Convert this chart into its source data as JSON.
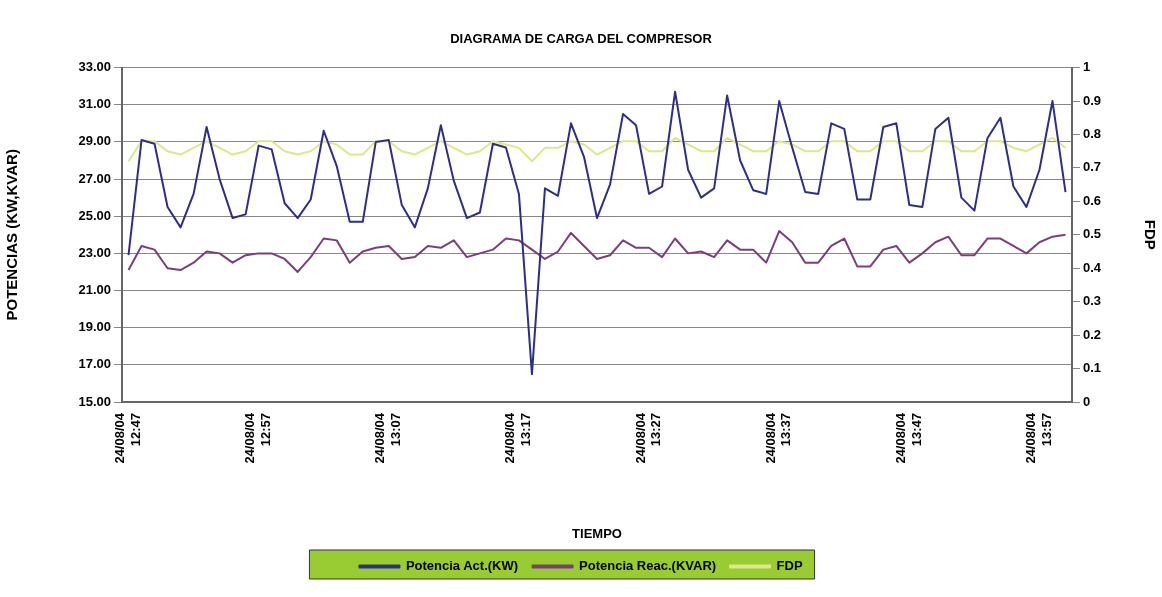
{
  "chart_data": {
    "type": "line",
    "title": "DIAGRAMA DE CARGA DEL COMPRESOR",
    "xlabel": "TIEMPO",
    "ylabel": "POTENCIAS (KW,KVAR)",
    "y2label": "FDP",
    "categories": [
      "24/08/04 12:47",
      null,
      null,
      null,
      null,
      null,
      null,
      null,
      null,
      null,
      "24/08/04 12:57",
      null,
      null,
      null,
      null,
      null,
      null,
      null,
      null,
      null,
      "24/08/04 13:07",
      null,
      null,
      null,
      null,
      null,
      null,
      null,
      null,
      null,
      "24/08/04 13:17",
      null,
      null,
      null,
      null,
      null,
      null,
      null,
      null,
      null,
      "24/08/04 13:27",
      null,
      null,
      null,
      null,
      null,
      null,
      null,
      null,
      null,
      "24/08/04 13:37",
      null,
      null,
      null,
      null,
      null,
      null,
      null,
      null,
      null,
      "24/08/04 13:47",
      null,
      null,
      null,
      null,
      null,
      null,
      null,
      null,
      null,
      "24/08/04 13:57",
      null,
      null
    ],
    "series": [
      {
        "name": "Potencia Act.(KW)",
        "color": "#2e2e8a",
        "values": [
          22.9,
          29.1,
          28.9,
          25.5,
          24.4,
          26.2,
          29.8,
          27.0,
          24.9,
          25.1,
          28.8,
          28.6,
          25.7,
          24.9,
          25.9,
          29.6,
          27.7,
          24.7,
          24.7,
          29.0,
          29.1,
          25.6,
          24.4,
          26.5,
          29.9,
          26.9,
          24.9,
          25.2,
          28.9,
          28.7,
          26.2,
          16.5,
          26.5,
          26.1,
          30.0,
          28.2,
          24.9,
          26.7,
          30.5,
          29.9,
          26.2,
          26.6,
          31.7,
          27.5,
          26.0,
          26.5,
          31.5,
          28.0,
          26.4,
          26.2,
          31.2,
          28.7,
          26.3,
          26.2,
          30.0,
          29.7,
          25.9,
          25.9,
          29.8,
          30.0,
          25.6,
          25.5,
          29.7,
          30.3,
          26.0,
          25.3,
          29.2,
          30.3,
          26.6,
          25.5,
          27.5,
          31.2,
          26.3
        ]
      },
      {
        "name": "Potencia Reac.(KVAR)",
        "color": "#7a3f7a",
        "values": [
          22.1,
          23.4,
          23.2,
          22.2,
          22.1,
          22.5,
          23.1,
          23.0,
          22.5,
          22.9,
          23.0,
          23.0,
          22.7,
          22.0,
          22.8,
          23.8,
          23.7,
          22.5,
          23.1,
          23.3,
          23.4,
          22.7,
          22.8,
          23.4,
          23.3,
          23.7,
          22.8,
          23.0,
          23.2,
          23.8,
          23.7,
          23.2,
          22.7,
          23.1,
          24.1,
          23.4,
          22.7,
          22.9,
          23.7,
          23.3,
          23.3,
          22.8,
          23.8,
          23.0,
          23.1,
          22.8,
          23.7,
          23.2,
          23.2,
          22.5,
          24.2,
          23.6,
          22.5,
          22.5,
          23.4,
          23.8,
          22.3,
          22.3,
          23.2,
          23.4,
          22.5,
          23.0,
          23.6,
          23.9,
          22.9,
          22.9,
          23.8,
          23.8,
          23.4,
          23.0,
          23.6,
          23.9,
          24.0
        ]
      },
      {
        "name": "FDP",
        "color": "#dde88a",
        "axis": "y2",
        "values": [
          0.72,
          0.78,
          0.78,
          0.75,
          0.74,
          0.76,
          0.78,
          0.76,
          0.74,
          0.75,
          0.78,
          0.78,
          0.75,
          0.74,
          0.75,
          0.78,
          0.77,
          0.74,
          0.74,
          0.78,
          0.78,
          0.75,
          0.74,
          0.76,
          0.78,
          0.76,
          0.74,
          0.75,
          0.78,
          0.77,
          0.76,
          0.72,
          0.76,
          0.76,
          0.78,
          0.77,
          0.74,
          0.76,
          0.78,
          0.78,
          0.75,
          0.75,
          0.79,
          0.77,
          0.75,
          0.75,
          0.79,
          0.77,
          0.75,
          0.75,
          0.78,
          0.77,
          0.75,
          0.75,
          0.78,
          0.78,
          0.75,
          0.75,
          0.78,
          0.78,
          0.75,
          0.75,
          0.78,
          0.78,
          0.75,
          0.75,
          0.78,
          0.78,
          0.76,
          0.75,
          0.77,
          0.79,
          0.76
        ]
      }
    ],
    "ylim": [
      15,
      33
    ],
    "yticks": [
      {
        "value": 15,
        "label": "15.00"
      },
      {
        "value": 17,
        "label": "17.00"
      },
      {
        "value": 19,
        "label": "19.00"
      },
      {
        "value": 21,
        "label": "21.00"
      },
      {
        "value": 23,
        "label": "23.00"
      },
      {
        "value": 25,
        "label": "25.00"
      },
      {
        "value": 27,
        "label": "27.00"
      },
      {
        "value": 29,
        "label": "29.00"
      },
      {
        "value": 31,
        "label": "31.00"
      },
      {
        "value": 33,
        "label": "33.00"
      }
    ],
    "y2lim": [
      0,
      1
    ],
    "y2ticks": [
      0,
      0.1,
      0.2,
      0.3,
      0.4,
      0.5,
      0.6,
      0.7,
      0.8,
      0.9,
      1
    ],
    "grid": "y",
    "legend": "bottom",
    "marker": "none"
  }
}
